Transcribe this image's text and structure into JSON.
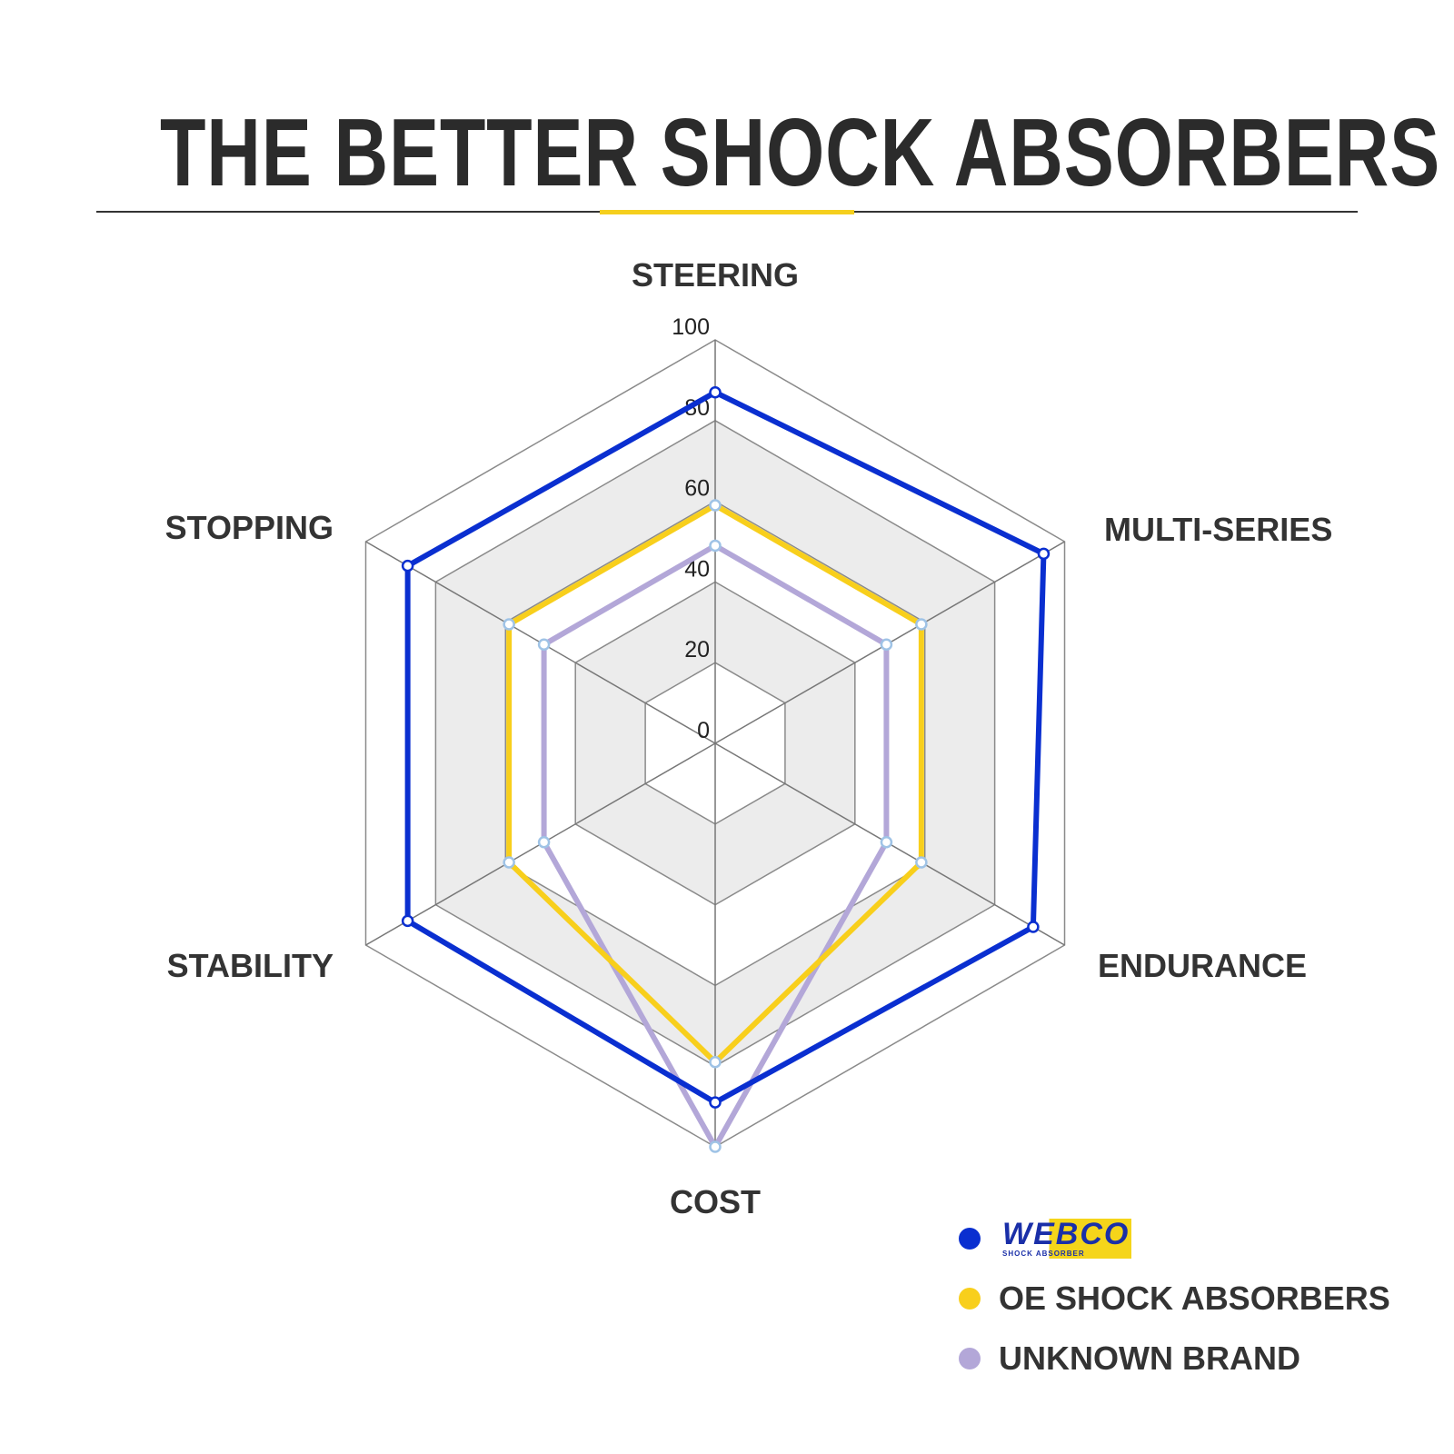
{
  "title": "THE BETTER SHOCK ABSORBERS",
  "chart_data": {
    "type": "radar",
    "categories": [
      "STEERING",
      "MULTI-SERIES",
      "ENDURANCE",
      "COST",
      "STABILITY",
      "STOPPING"
    ],
    "ticks": [
      "0",
      "20",
      "40",
      "60",
      "80",
      "100"
    ],
    "range": [
      0,
      100
    ],
    "grid": true,
    "legend_position": "bottom-right",
    "series": [
      {
        "name": "WEBCO",
        "color": "#0a2fd0",
        "values": [
          87,
          94,
          91,
          89,
          88,
          88
        ]
      },
      {
        "name": "OE SHOCK ABSORBERS",
        "color": "#f8cf1c",
        "values": [
          59,
          59,
          59,
          79,
          59,
          59
        ]
      },
      {
        "name": "UNKNOWN BRAND",
        "color": "#b3a7d8",
        "values": [
          49,
          49,
          49,
          100,
          49,
          49
        ]
      }
    ]
  },
  "legend": {
    "webco_logo_text": "WEBCO",
    "webco_logo_sub": "SHOCK ABSORBER"
  }
}
